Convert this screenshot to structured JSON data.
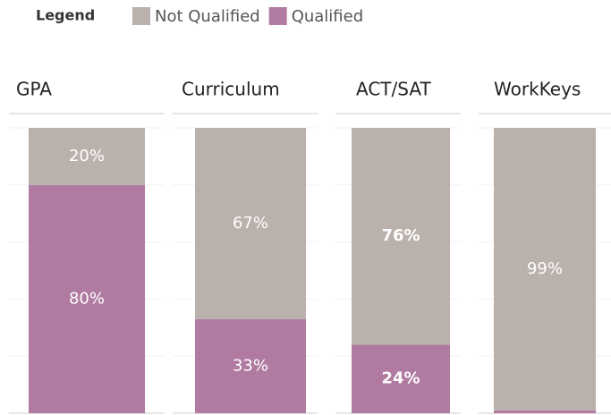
{
  "chart_data": {
    "type": "stacked_bar",
    "legend_title": "Legend",
    "categories": [
      "GPA",
      "Curriculum",
      "ACT/SAT",
      "WorkKeys"
    ],
    "series": [
      {
        "name": "Qualified",
        "color": "#b07aa1",
        "values": [
          80,
          33,
          24,
          1
        ],
        "value_labels": [
          "80%",
          "33%",
          "24%",
          null
        ]
      },
      {
        "name": "Not Qualified",
        "color": "#bab0ac",
        "values": [
          20,
          67,
          76,
          99
        ],
        "value_labels": [
          "20%",
          "67%",
          "76%",
          "99%"
        ]
      }
    ],
    "legend_order": [
      1,
      0
    ],
    "ylim": [
      0,
      100
    ],
    "yticks": [
      0,
      20,
      40,
      60,
      80,
      100
    ],
    "grid": true
  }
}
